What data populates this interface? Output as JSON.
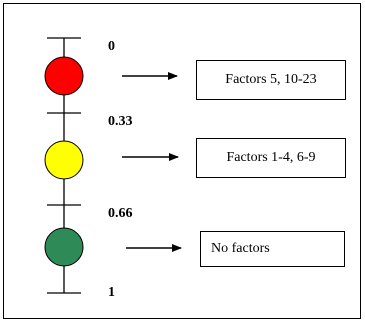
{
  "scale": {
    "ticks": [
      "0",
      "0.33",
      "0.66",
      "1"
    ]
  },
  "levels": [
    {
      "color": "#ff0000",
      "label": "Factors 5, 10-23"
    },
    {
      "color": "#ffff00",
      "label": "Factors 1-4, 6-9"
    },
    {
      "color": "#2e8b57",
      "label": "No factors"
    }
  ]
}
